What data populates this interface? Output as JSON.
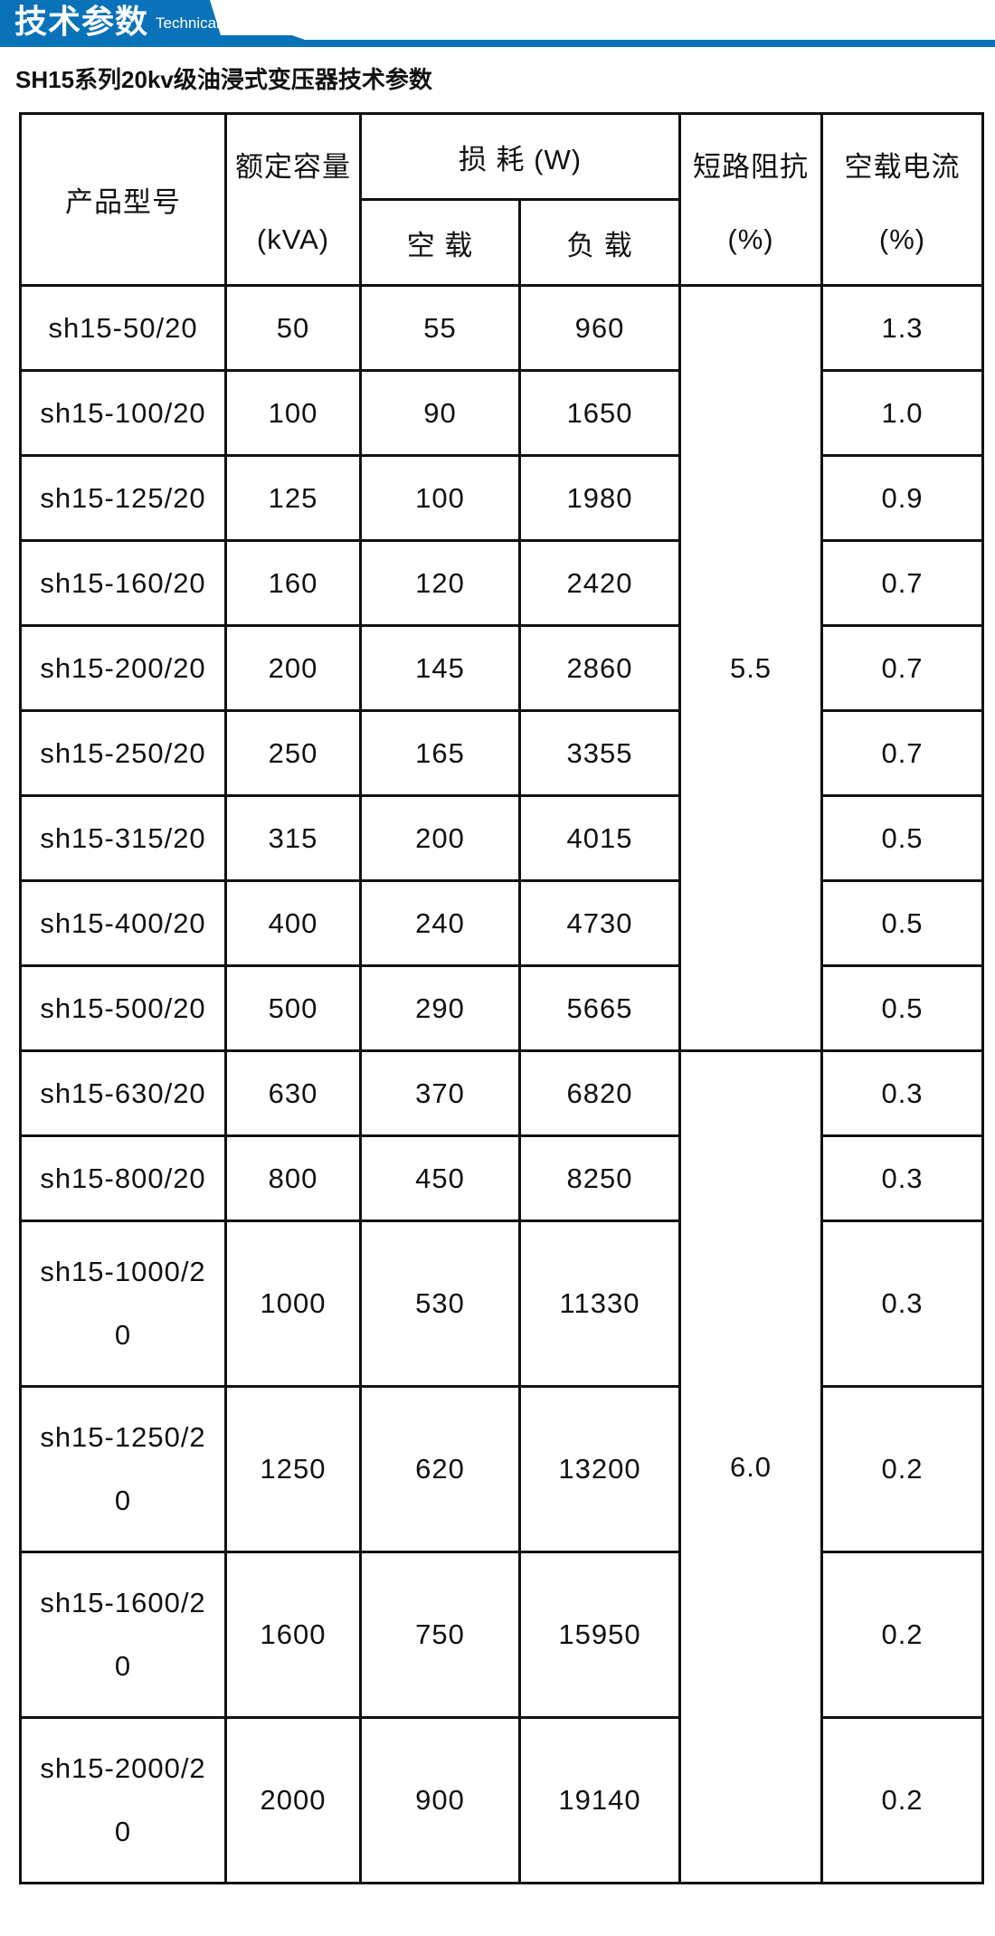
{
  "banner": {
    "title": "技术参数",
    "subtitle": "Technical parameter",
    "color": "#0a72b8"
  },
  "table_title": "SH15系列20kv级油浸式变压器技术参数",
  "headers": {
    "model": "产品型号",
    "capacity": "额定容量",
    "capacity_unit": "(kVA)",
    "loss": "损 耗 (W)",
    "no_load": "空 载",
    "load": "负 载",
    "impedance": "短路阻抗",
    "impedance_unit": "(%)",
    "no_load_current": "空载电流",
    "no_load_current_unit": "(%)"
  },
  "impedance_groups": [
    "5.5",
    "6.0"
  ],
  "rows": [
    {
      "model": "sh15-50/20",
      "capacity": "50",
      "no_load": "55",
      "load": "960",
      "current": "1.3"
    },
    {
      "model": "sh15-100/20",
      "capacity": "100",
      "no_load": "90",
      "load": "1650",
      "current": "1.0"
    },
    {
      "model": "sh15-125/20",
      "capacity": "125",
      "no_load": "100",
      "load": "1980",
      "current": "0.9"
    },
    {
      "model": "sh15-160/20",
      "capacity": "160",
      "no_load": "120",
      "load": "2420",
      "current": "0.7"
    },
    {
      "model": "sh15-200/20",
      "capacity": "200",
      "no_load": "145",
      "load": "2860",
      "current": "0.7"
    },
    {
      "model": "sh15-250/20",
      "capacity": "250",
      "no_load": "165",
      "load": "3355",
      "current": "0.7"
    },
    {
      "model": "sh15-315/20",
      "capacity": "315",
      "no_load": "200",
      "load": "4015",
      "current": "0.5"
    },
    {
      "model": "sh15-400/20",
      "capacity": "400",
      "no_load": "240",
      "load": "4730",
      "current": "0.5"
    },
    {
      "model": "sh15-500/20",
      "capacity": "500",
      "no_load": "290",
      "load": "5665",
      "current": "0.5"
    },
    {
      "model": "sh15-630/20",
      "capacity": "630",
      "no_load": "370",
      "load": "6820",
      "current": "0.3"
    },
    {
      "model": "sh15-800/20",
      "capacity": "800",
      "no_load": "450",
      "load": "8250",
      "current": "0.3"
    },
    {
      "model": "sh15-1000/20",
      "capacity": "1000",
      "no_load": "530",
      "load": "11330",
      "current": "0.3"
    },
    {
      "model": "sh15-1250/20",
      "capacity": "1250",
      "no_load": "620",
      "load": "13200",
      "current": "0.2"
    },
    {
      "model": "sh15-1600/20",
      "capacity": "1600",
      "no_load": "750",
      "load": "15950",
      "current": "0.2"
    },
    {
      "model": "sh15-2000/20",
      "capacity": "2000",
      "no_load": "900",
      "load": "19140",
      "current": "0.2"
    }
  ]
}
